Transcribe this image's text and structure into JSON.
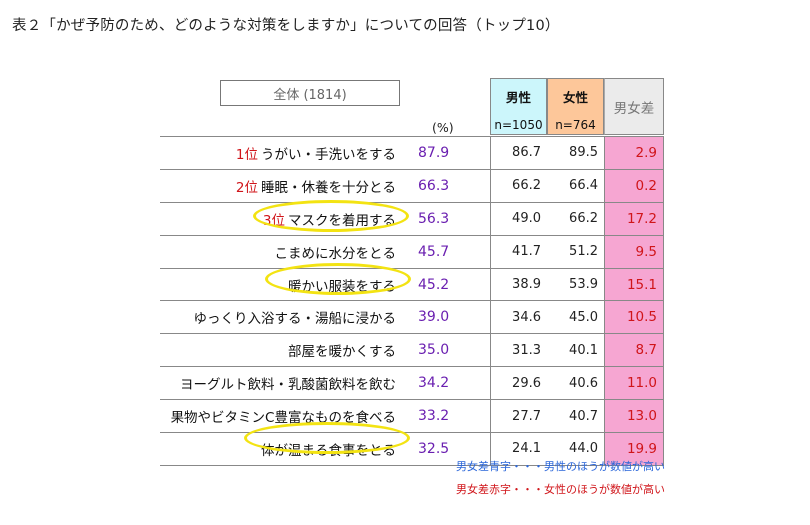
{
  "title": "表２「かぜ予防のため、どのような対策をしますか」についての回答（トップ10）",
  "header": {
    "total_label": "全体 (1814)",
    "percent_label": "(%)",
    "male_label": "男性",
    "male_n": "n=1050",
    "female_label": "女性",
    "female_n": "n=764",
    "diff_label": "男女差"
  },
  "rows": [
    {
      "rank": "1位",
      "label": "うがい・手洗いをする",
      "total": "87.9",
      "male": "86.7",
      "female": "89.5",
      "diff": "2.9",
      "diff_color": "red"
    },
    {
      "rank": "2位",
      "label": "睡眠・休養を十分とる",
      "total": "66.3",
      "male": "66.2",
      "female": "66.4",
      "diff": "0.2",
      "diff_color": "red"
    },
    {
      "rank": "3位",
      "label": "マスクを着用する",
      "total": "56.3",
      "male": "49.0",
      "female": "66.2",
      "diff": "17.2",
      "diff_color": "red"
    },
    {
      "rank": "",
      "label": "こまめに水分をとる",
      "total": "45.7",
      "male": "41.7",
      "female": "51.2",
      "diff": "9.5",
      "diff_color": "red"
    },
    {
      "rank": "",
      "label": "暖かい服装をする",
      "total": "45.2",
      "male": "38.9",
      "female": "53.9",
      "diff": "15.1",
      "diff_color": "red"
    },
    {
      "rank": "",
      "label": "ゆっくり入浴する・湯船に浸かる",
      "total": "39.0",
      "male": "34.6",
      "female": "45.0",
      "diff": "10.5",
      "diff_color": "red"
    },
    {
      "rank": "",
      "label": "部屋を暖かくする",
      "total": "35.0",
      "male": "31.3",
      "female": "40.1",
      "diff": "8.7",
      "diff_color": "red"
    },
    {
      "rank": "",
      "label": "ヨーグルト飲料・乳酸菌飲料を飲む",
      "total": "34.2",
      "male": "29.6",
      "female": "40.6",
      "diff": "11.0",
      "diff_color": "red"
    },
    {
      "rank": "",
      "label": "果物やビタミンC豊富なものを食べる",
      "total": "33.2",
      "male": "27.7",
      "female": "40.7",
      "diff": "13.0",
      "diff_color": "red"
    },
    {
      "rank": "",
      "label": "体が温まる食事をとる",
      "total": "32.5",
      "male": "24.1",
      "female": "44.0",
      "diff": "19.9",
      "diff_color": "red"
    }
  ],
  "notes": {
    "blue": "男女差青字・・・男性のほうが数値が高い",
    "red": "男女差赤字・・・女性のほうが数値が高い"
  },
  "colors": {
    "male_header": "#ccf6fb",
    "female_header": "#fdc79a",
    "diff_cell": "#f6a6d2",
    "highlight_ellipse": "#f3e312",
    "rank_red": "#d0151a",
    "total_purple": "#6a1fb0"
  }
}
